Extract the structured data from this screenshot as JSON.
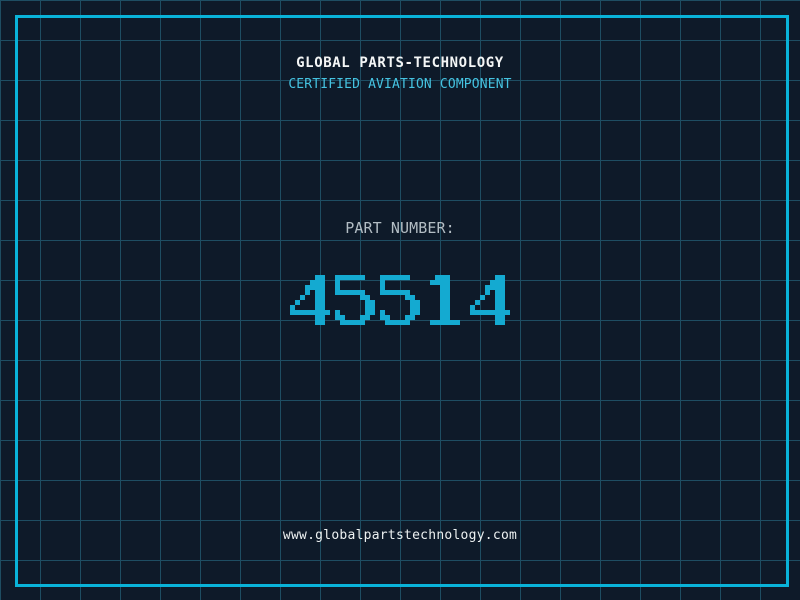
{
  "header": {
    "title": "GLOBAL PARTS-TECHNOLOGY",
    "subtitle": "CERTIFIED AVIATION COMPONENT"
  },
  "part": {
    "label": "PART NUMBER:",
    "number": "45514"
  },
  "footer": {
    "website": "www.globalpartstechnology.com"
  },
  "colors": {
    "background": "#0e1a29",
    "grid_line": "#1e4d62",
    "frame": "#09b3d9",
    "title": "#f4f6f6",
    "subtitle": "#45c3e1",
    "label": "#b3bdc4",
    "number": "#14aad1",
    "footer_text": "#edf1f1"
  }
}
